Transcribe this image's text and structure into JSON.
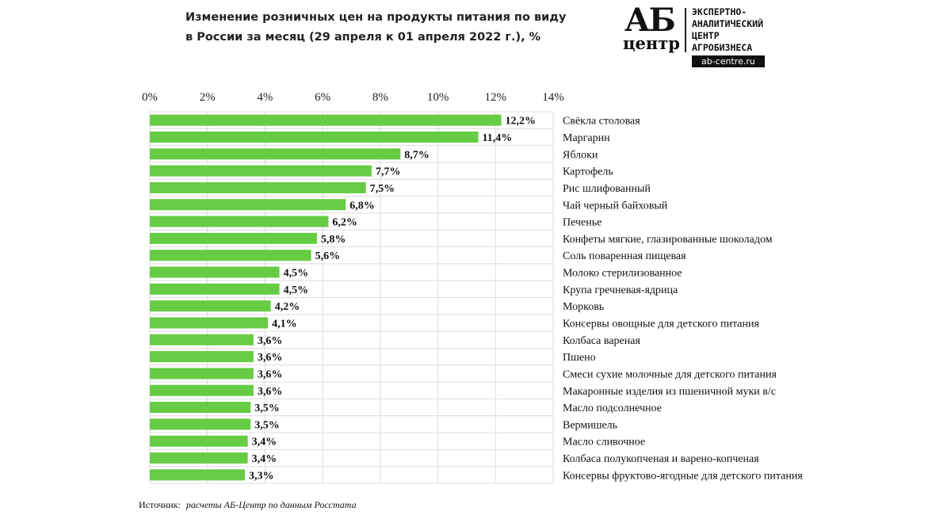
{
  "chart_data": {
    "type": "bar",
    "orientation": "horizontal",
    "title": "Изменение розничных цен на продукты питания по виду в России за месяц (29 апреля к 01 апреля 2022 г.), %",
    "title_lines": [
      "Изменение розничных цен на продукты питания по виду",
      "в России за месяц (29 апреля к 01 апреля 2022 г.), %"
    ],
    "xlim": [
      0,
      14
    ],
    "xticks": [
      0,
      2,
      4,
      6,
      8,
      10,
      12,
      14
    ],
    "xtick_labels": [
      "0%",
      "2%",
      "4%",
      "6%",
      "8%",
      "10%",
      "12%",
      "14%"
    ],
    "grid": true,
    "bar_color": "#66cc44",
    "categories": [
      "Свёкла столовая",
      "Маргарин",
      "Яблоки",
      "Картофель",
      "Рис шлифованный",
      "Чай черный байховый",
      "Печенье",
      "Конфеты мягкие, глазированные шоколадом",
      "Соль поваренная пищевая",
      "Молоко стерилизованное",
      "Крупа гречневая-ядрица",
      "Морковь",
      "Консервы овощные для детского питания",
      "Колбаса вареная",
      "Пшено",
      "Смеси сухие молочные для детского питания",
      "Макаронные изделия из пшеничной муки в/с",
      "Масло подсолнечное",
      "Вермишель",
      "Масло сливочное",
      "Колбаса полукопченая и варено-копченая",
      "Консервы фруктово-ягодные для детского питания"
    ],
    "values": [
      12.2,
      11.4,
      8.7,
      7.7,
      7.5,
      6.8,
      6.2,
      5.8,
      5.6,
      4.5,
      4.5,
      4.2,
      4.1,
      3.6,
      3.6,
      3.6,
      3.6,
      3.5,
      3.5,
      3.4,
      3.4,
      3.3
    ],
    "value_labels": [
      "12,2%",
      "11,4%",
      "8,7%",
      "7,7%",
      "7,5%",
      "6,8%",
      "6,2%",
      "5,8%",
      "5,6%",
      "4,5%",
      "4,5%",
      "4,2%",
      "4,1%",
      "3,6%",
      "3,6%",
      "3,6%",
      "3,6%",
      "3,5%",
      "3,5%",
      "3,4%",
      "3,4%",
      "3,3%"
    ]
  },
  "logo": {
    "mark": "АБ",
    "mark_sub": "центр",
    "lines": [
      "ЭКСПЕРТНО-",
      "АНАЛИТИЧЕСКИЙ",
      "ЦЕНТР",
      "АГРОБИЗНЕСА"
    ],
    "url": "ab-centre.ru"
  },
  "source": {
    "label": "Источник:",
    "text": "расчеты АБ-Центр  по данным  Росстата"
  }
}
